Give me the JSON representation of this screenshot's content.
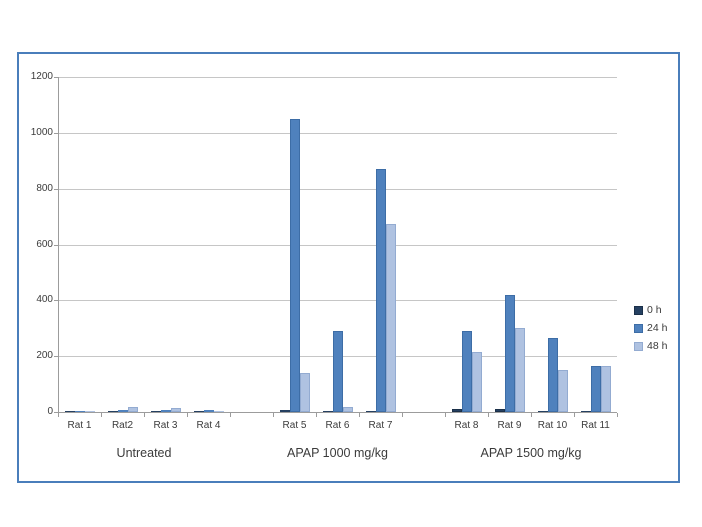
{
  "chart_data": {
    "type": "bar",
    "title": "",
    "categories": [
      "Rat 1",
      "Rat2",
      "Rat 3",
      "Rat 4",
      "Rat 5",
      "Rat 6",
      "Rat 7",
      "Rat 8",
      "Rat 9",
      "Rat 10",
      "Rat 11"
    ],
    "slot_indices": [
      0,
      1,
      2,
      3,
      5,
      6,
      7,
      9,
      10,
      11,
      12
    ],
    "total_slots": 13,
    "groups": [
      {
        "label": "Untreated",
        "rat_span": [
          0,
          3
        ]
      },
      {
        "label": "APAP 1000 mg/kg",
        "rat_span": [
          4,
          6
        ]
      },
      {
        "label": "APAP 1500 mg/kg",
        "rat_span": [
          7,
          10
        ]
      }
    ],
    "series": [
      {
        "name": "0 h",
        "color": "#254061",
        "border": "#1b3049",
        "values": [
          3,
          5,
          5,
          5,
          8,
          5,
          5,
          10,
          12,
          5,
          5
        ]
      },
      {
        "name": "24 h",
        "color": "#4f81bd",
        "border": "#3d6da6",
        "values": [
          5,
          8,
          8,
          6,
          1050,
          290,
          870,
          290,
          420,
          265,
          165
        ]
      },
      {
        "name": "48 h",
        "color": "#afc2e1",
        "border": "#93abd1",
        "values": [
          3,
          18,
          14,
          5,
          140,
          18,
          675,
          215,
          300,
          150,
          165
        ]
      }
    ],
    "ylim": [
      0,
      1200
    ],
    "y_step": 200,
    "y_ticks": [
      "0",
      "200",
      "400",
      "600",
      "800",
      "1000",
      "1200"
    ],
    "grid": true,
    "legend_position": "right"
  },
  "colors": {
    "frame_border": "#4a7ebb",
    "gridline": "#c6c6c6",
    "axis": "#9c9c9c",
    "text": "#3b3b3b",
    "background": "#ffffff"
  }
}
